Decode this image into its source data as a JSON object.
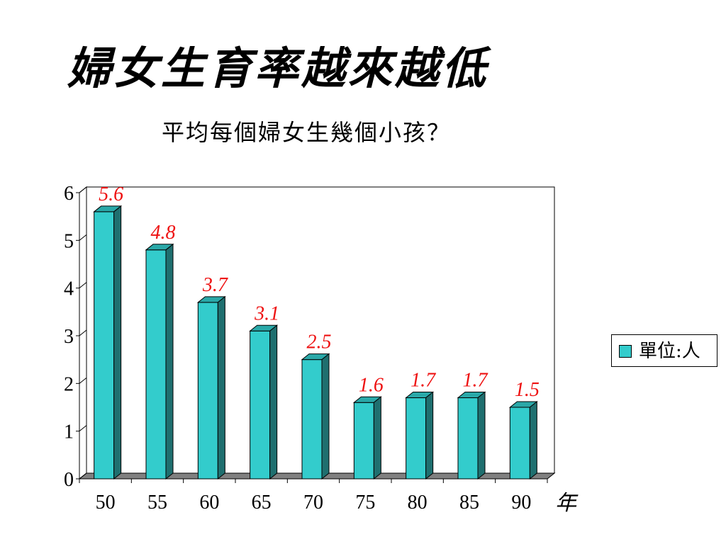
{
  "page": {
    "title": "婦女生育率越來越低",
    "subtitle": "平均每個婦女生幾個小孩？"
  },
  "chart_data": {
    "type": "bar",
    "categories": [
      "50",
      "55",
      "60",
      "65",
      "70",
      "75",
      "80",
      "85",
      "90"
    ],
    "values": [
      5.6,
      4.8,
      3.7,
      3.1,
      2.5,
      1.6,
      1.7,
      1.7,
      1.5
    ],
    "data_labels": [
      "5.6",
      "4.8",
      "3.7",
      "3.1",
      "2.5",
      "1.6",
      "1.7",
      "1.7",
      "1.5"
    ],
    "xlabel": "年",
    "ylabel": "",
    "ylim": [
      0,
      6
    ],
    "yticks": [
      0,
      1,
      2,
      3,
      4,
      5,
      6
    ],
    "series": [
      {
        "name": "單位:人",
        "values": [
          5.6,
          4.8,
          3.7,
          3.1,
          2.5,
          1.6,
          1.7,
          1.7,
          1.5
        ]
      }
    ],
    "legend": {
      "position": "right",
      "label": "單位:人"
    },
    "grid": false,
    "colors": {
      "bar_front": "#33cccc",
      "bar_top": "#2aa8a8",
      "bar_side": "#1f6f6f",
      "data_label": "#ee1111"
    }
  }
}
